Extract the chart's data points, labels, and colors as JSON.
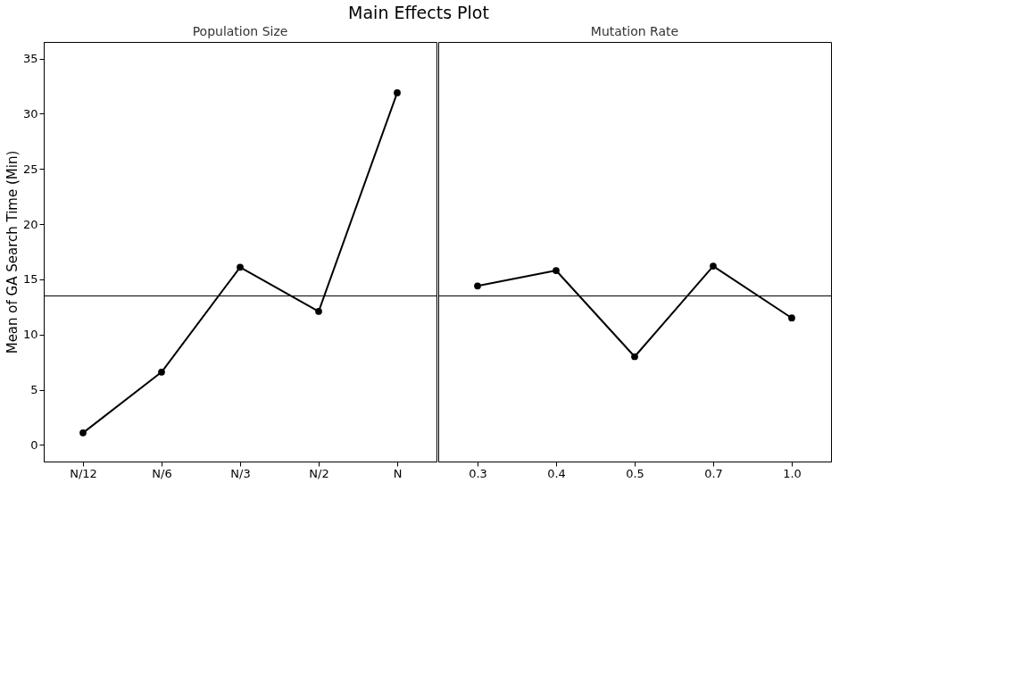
{
  "chart_data": [
    {
      "type": "line",
      "title": "Population Size",
      "ylabel": "Mean of GA Search Time (Min)",
      "annotations": [
        "Main Effects Plot"
      ],
      "categories": [
        "N/12",
        "N/6",
        "N/3",
        "N/2",
        "N"
      ],
      "series": [
        {
          "color": "#000000",
          "values": [
            1.1,
            6.6,
            16.1,
            12.1,
            31.9
          ]
        }
      ],
      "ylim": [
        -1.5,
        36.5
      ],
      "yticks": [
        0,
        5,
        10,
        15,
        20,
        25,
        30,
        35
      ],
      "ref_lines": [
        {
          "axis": "y",
          "value": 13.5,
          "color": "#000000"
        }
      ],
      "marker": "circle",
      "line_style": "solid",
      "grid": false
    },
    {
      "type": "line",
      "title": "Mutation Rate",
      "categories": [
        "0.3",
        "0.4",
        "0.5",
        "0.7",
        "1.0"
      ],
      "series": [
        {
          "color": "#000000",
          "values": [
            14.4,
            15.8,
            8.0,
            16.2,
            11.5
          ]
        }
      ],
      "ylim": [
        -1.5,
        36.5
      ],
      "yticks": [
        0,
        5,
        10,
        15,
        20,
        25,
        30,
        35
      ],
      "tick_labels": "x",
      "ref_lines": [
        {
          "axis": "y",
          "value": 13.5,
          "color": "#000000"
        }
      ],
      "marker": "circle",
      "line_style": "solid",
      "grid": false
    }
  ]
}
